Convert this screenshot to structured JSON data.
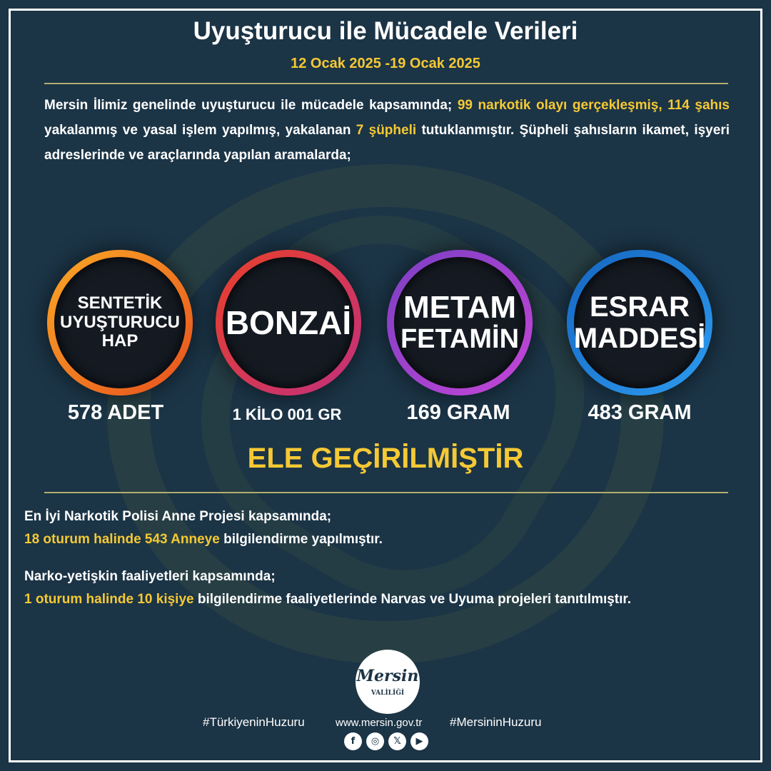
{
  "title": "Uyuşturucu ile Mücadele Verileri",
  "date_range": "12 Ocak 2025 -19 Ocak 2025",
  "intro": {
    "p1": "Mersin İlimiz genelinde uyuşturucu ile mücadele kapsamında; ",
    "h1": "99 narkotik olayı gerçekleşmiş, 114 şahıs",
    "p2": " yakalanmış ve yasal işlem yapılmış, yakalanan ",
    "h2": "7 şüpheli",
    "p3": " tutuklanmıştır. Şüpheli şahısların ikamet, işyeri adreslerinde ve araçlarında yapılan aramalarda;"
  },
  "items": [
    {
      "l1": "SENTETİK",
      "l2": "UYUŞTURUCU",
      "l3": "HAP",
      "value": "578 ADET",
      "ring": [
        "#f9a825",
        "#e8501e"
      ]
    },
    {
      "l1": "BONZAİ",
      "value": "1 KİLO 001 GR",
      "ring": [
        "#e8402a",
        "#c2307c"
      ]
    },
    {
      "l1": "METAM",
      "l2": "FETAMİN",
      "value": "169 GRAM",
      "ring": [
        "#7b3fc4",
        "#c545d6"
      ]
    },
    {
      "l1": "ESRAR",
      "l2": "MADDESİ",
      "value": "483 GRAM",
      "ring": [
        "#1565c0",
        "#2d9cf0"
      ]
    }
  ],
  "seized": "ELE GEÇİRİLMİŞTİR",
  "section1": {
    "line1": "En İyi Narkotik Polisi Anne Projesi kapsamında;",
    "h": "18 oturum halinde 543 Anneye",
    "rest": " bilgilendirme yapılmıştır."
  },
  "section2": {
    "line1": "Narko-yetişkin faaliyetleri kapsamında;",
    "h": "1 oturum halinde 10 kişiye",
    "rest": " bilgilendirme faaliyetlerinde Narvas ve Uyuma projeleri tanıtılmıştır."
  },
  "logo": {
    "name": "Mersin",
    "sub": "VALİLİĞİ"
  },
  "footer": {
    "tag1": "#TürkiyeninHuzuru",
    "url": "www.mersin.gov.tr",
    "tag2": "#MersininHuzuru"
  },
  "social": [
    "facebook-icon",
    "instagram-icon",
    "x-icon",
    "youtube-icon"
  ],
  "colors": {
    "background": "#1b3446",
    "accent": "#f5c934"
  }
}
